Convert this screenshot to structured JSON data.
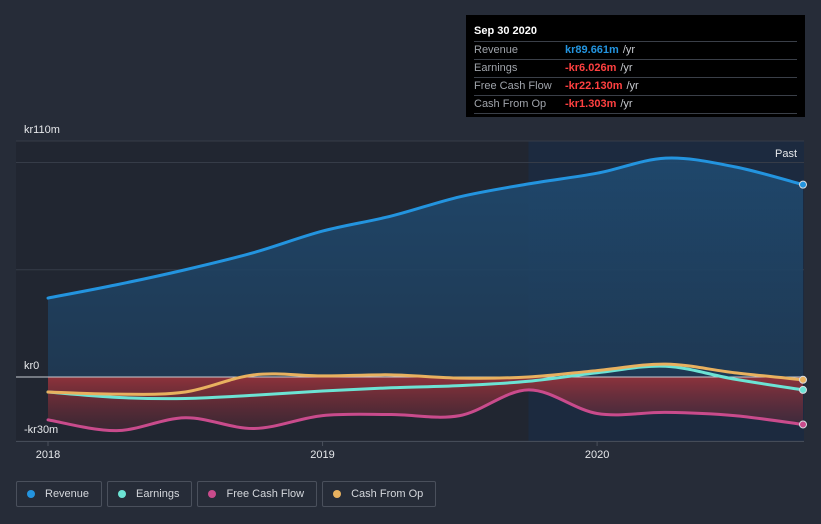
{
  "tooltip": {
    "date": "Sep 30 2020",
    "rows": [
      {
        "label": "Revenue",
        "value": "kr89.661m",
        "unit": "/yr",
        "color": "#2394df"
      },
      {
        "label": "Earnings",
        "value": "-kr6.026m",
        "unit": "/yr",
        "color": "#ff4040"
      },
      {
        "label": "Free Cash Flow",
        "value": "-kr22.130m",
        "unit": "/yr",
        "color": "#ff4040"
      },
      {
        "label": "Cash From Op",
        "value": "-kr1.303m",
        "unit": "/yr",
        "color": "#ff4040"
      }
    ]
  },
  "past_label": "Past",
  "legend": [
    {
      "label": "Revenue",
      "color": "#2394df"
    },
    {
      "label": "Earnings",
      "color": "#6ce3d4"
    },
    {
      "label": "Free Cash Flow",
      "color": "#c94b8c"
    },
    {
      "label": "Cash From Op",
      "color": "#e8b15f"
    }
  ],
  "chart_data": {
    "type": "line",
    "title": "",
    "xlabel": "",
    "ylabel": "",
    "y_tick_labels": [
      "kr110m",
      "kr0",
      "-kr30m"
    ],
    "ylim": [
      -30,
      110
    ],
    "x_tick_labels": [
      "2018",
      "2019",
      "2020"
    ],
    "xlim": [
      2018.0,
      2020.75
    ],
    "grid": true,
    "legend_position": "bottom-left",
    "x": [
      2018.0,
      2018.25,
      2018.5,
      2018.75,
      2019.0,
      2019.25,
      2019.5,
      2019.75,
      2020.0,
      2020.25,
      2020.5,
      2020.75
    ],
    "series": [
      {
        "name": "Revenue",
        "color": "#2394df",
        "values": [
          36.8,
          43,
          50,
          58,
          68,
          75,
          84,
          90,
          95,
          102,
          98,
          89.661
        ]
      },
      {
        "name": "Earnings",
        "color": "#6ce3d4",
        "values": [
          -7,
          -9.5,
          -10,
          -8.5,
          -6.5,
          -5,
          -4,
          -2,
          2,
          5,
          -1,
          -6.026
        ]
      },
      {
        "name": "Free Cash Flow",
        "color": "#c94b8c",
        "values": [
          -20,
          -25,
          -19,
          -24,
          -18,
          -17.5,
          -18,
          -6,
          -17,
          -16.5,
          -18,
          -22.13
        ]
      },
      {
        "name": "Cash From Op",
        "color": "#e8b15f",
        "values": [
          -7,
          -8,
          -7,
          1,
          0.5,
          1,
          -0.5,
          0,
          3,
          6,
          2,
          -1.303
        ]
      }
    ],
    "highlight_region_start": 2019.75
  }
}
